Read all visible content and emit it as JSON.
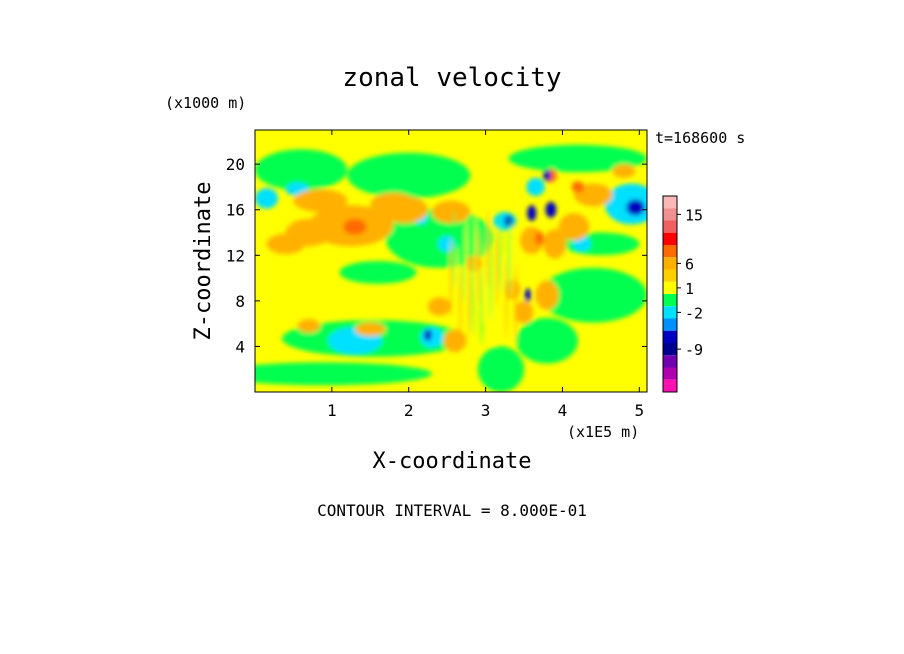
{
  "chart_data": {
    "type": "heatmap",
    "title": "zonal velocity",
    "xlabel": "X-coordinate",
    "ylabel": "Z-coordinate",
    "x_unit": "(x1E5 m)",
    "y_unit": "(x1000 m)",
    "time_label": "t=168600 s",
    "x_ticks": [
      "1",
      "2",
      "3",
      "4",
      "5"
    ],
    "y_ticks": [
      "4",
      "8",
      "12",
      "16",
      "20"
    ],
    "xlim": [
      0,
      5.1
    ],
    "ylim": [
      0,
      23
    ],
    "footer": "CONTOUR INTERVAL = 8.000E-01",
    "colorbar": {
      "tick_labels": [
        "15",
        "6",
        "1",
        "-2",
        "-9"
      ],
      "colors": [
        "#f8b8b8",
        "#f09090",
        "#f06060",
        "#ff0000",
        "#ff6a00",
        "#ffb000",
        "#ffd000",
        "#ffff00",
        "#00ff50",
        "#00e0ff",
        "#0090ff",
        "#0000c0",
        "#000090",
        "#7000b0",
        "#b000b0",
        "#ff10b0"
      ]
    },
    "field_levels": {
      "strong_positive": "#ff6a00",
      "positive": "#ffb000",
      "near_zero": "#ffff00",
      "slight_negative": "#00ff50",
      "negative": "#00e0ff",
      "strong_negative": "#0000c0"
    }
  }
}
